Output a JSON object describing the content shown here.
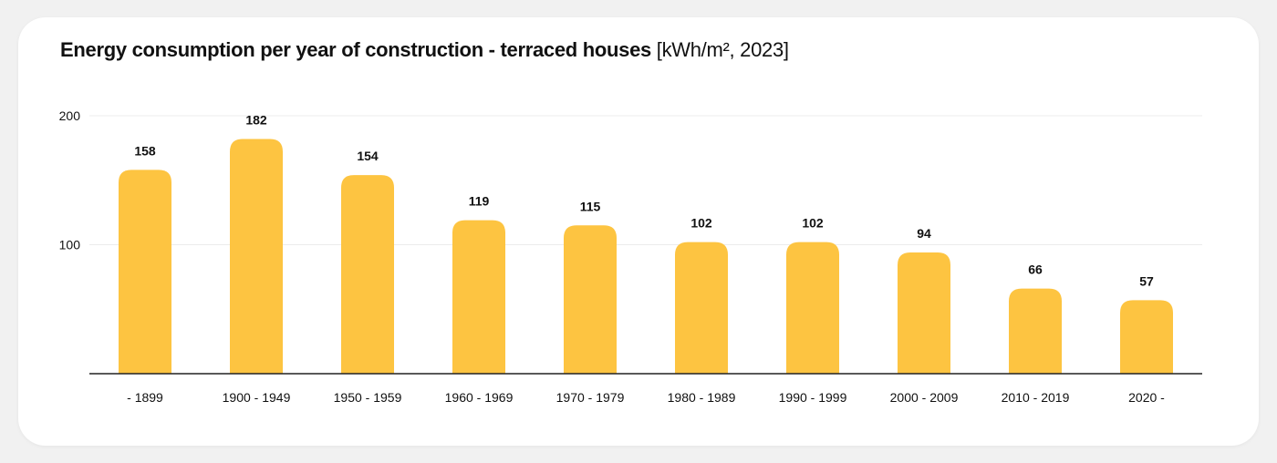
{
  "chart_data": {
    "type": "bar",
    "title": "Energy consumption per year of construction - terraced houses",
    "unit_label": "[kWh/m², 2023]",
    "categories": [
      "- 1899",
      "1900 - 1949",
      "1950 - 1959",
      "1960 - 1969",
      "1970 - 1979",
      "1980 - 1989",
      "1990 - 1999",
      "2000 - 2009",
      "2010 - 2019",
      "2020 -"
    ],
    "values": [
      158,
      182,
      154,
      119,
      115,
      102,
      102,
      94,
      66,
      57
    ],
    "data_labels": [
      "158",
      "182",
      "154",
      "119",
      "115",
      "102",
      "102",
      "94",
      "66",
      "57"
    ],
    "ylim": [
      0,
      200
    ],
    "yticks": [
      100,
      200
    ],
    "ytick_labels": [
      "100",
      "200"
    ],
    "grid": true,
    "legend": "none",
    "bar_color": "#fdc441",
    "grid_color": "#ececec",
    "axis_color": "#222222"
  }
}
